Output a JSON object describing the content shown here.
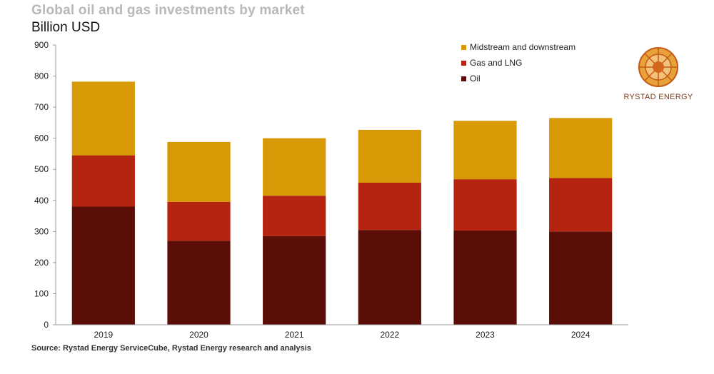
{
  "title": "Global oil and gas investments by market",
  "unit_label": "Billion USD",
  "source": "Source: Rystad Energy ServiceCube, Rystad Energy research and analysis",
  "logo": {
    "text": "RYSTAD ENERGY",
    "icon": "rystad-energy-logo"
  },
  "colors": {
    "midstream": "#d79a06",
    "gas": "#b52410",
    "oil": "#5a0e07",
    "axis": "#999999"
  },
  "chart_data": {
    "type": "bar",
    "stacked": true,
    "categories": [
      "2019",
      "2020",
      "2021",
      "2022",
      "2023",
      "2024"
    ],
    "series": [
      {
        "name": "Oil",
        "values": [
          380,
          270,
          285,
          305,
          303,
          300
        ]
      },
      {
        "name": "Gas and LNG",
        "values": [
          165,
          125,
          130,
          152,
          165,
          172
        ]
      },
      {
        "name": "Midstream and downstream",
        "values": [
          237,
          193,
          185,
          170,
          188,
          193
        ]
      }
    ],
    "ylim": [
      0,
      900
    ],
    "yticks": [
      0,
      100,
      200,
      300,
      400,
      500,
      600,
      700,
      800,
      900
    ],
    "legend_placement": "top-right",
    "legend_order": [
      "Midstream and downstream",
      "Gas and LNG",
      "Oil"
    ],
    "grid": false
  }
}
